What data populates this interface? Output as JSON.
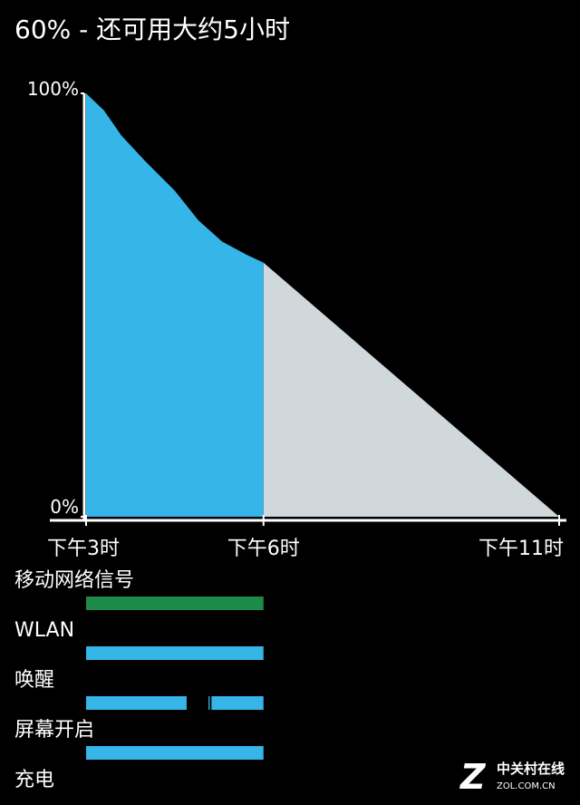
{
  "header": {
    "title": "60% - 还可用大约5小时"
  },
  "chart_data": {
    "type": "area",
    "x": [
      15,
      15.3,
      15.6,
      16,
      16.5,
      16.9,
      17.3,
      17.7,
      18
    ],
    "series": [
      {
        "color": "#35b5e8",
        "values": [
          100,
          96,
          90,
          84,
          77,
          70,
          65,
          62,
          60
        ]
      }
    ],
    "prediction": {
      "color": "#d0d8dc",
      "x": [
        18,
        23
      ],
      "values": [
        60,
        0
      ]
    },
    "xlim": [
      15,
      23
    ],
    "xticks": [
      {
        "value": 15,
        "label": "下午3时"
      },
      {
        "value": 18,
        "label": "下午6时"
      },
      {
        "value": 23,
        "label": "下午11时"
      }
    ],
    "ylim": [
      0,
      100
    ],
    "yticks": [
      {
        "value": 100,
        "label": "100%"
      },
      {
        "value": 0,
        "label": "0%"
      }
    ]
  },
  "activity": [
    {
      "label": "移动网络信号",
      "color": "#1e8a4a",
      "spans": [
        [
          15,
          18
        ]
      ]
    },
    {
      "label": "WLAN",
      "color": "#35b5e8",
      "spans": [
        [
          15,
          18
        ]
      ]
    },
    {
      "label": "唤醒",
      "color": "#35b5e8",
      "spans": [
        [
          15,
          16.7
        ],
        [
          17.07,
          17.09
        ],
        [
          17.12,
          18
        ]
      ]
    },
    {
      "label": "屏幕开启",
      "color": "#35b5e8",
      "spans": [
        [
          15,
          18
        ]
      ]
    },
    {
      "label": "充电",
      "color": "#35b5e8",
      "spans": []
    }
  ],
  "watermark": {
    "name": "中关村在线",
    "url": "ZOL.COM.CN"
  }
}
